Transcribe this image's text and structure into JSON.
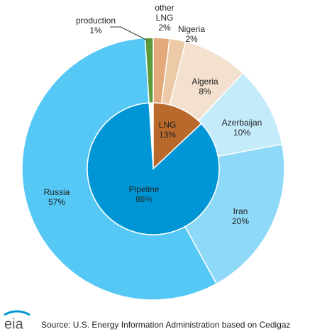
{
  "chart_data": {
    "type": "pie",
    "rings": [
      {
        "categories": [
          "LNG",
          "Pipeline"
        ],
        "values": [
          13,
          86
        ],
        "value_labels": [
          "13%",
          "86%"
        ],
        "colors": [
          "#b8692b",
          "#0096d6"
        ]
      },
      {
        "categories": [
          "other LNG",
          "Nigeria",
          "Algeria",
          "Azerbaijan",
          "Iran",
          "Russia",
          "production"
        ],
        "values": [
          2,
          2,
          8,
          10,
          20,
          57,
          1
        ],
        "value_labels": [
          "2%",
          "2%",
          "8%",
          "10%",
          "20%",
          "57%",
          "1%"
        ],
        "colors": [
          "#e3a97a",
          "#ecc9a7",
          "#f3e0cf",
          "#c3ebfa",
          "#8ed8f8",
          "#56c8f6",
          "#5b9b3a"
        ]
      }
    ]
  },
  "footer": {
    "logo": "eia",
    "source": "Source: U.S. Energy Information Administration based on Cedigaz"
  }
}
